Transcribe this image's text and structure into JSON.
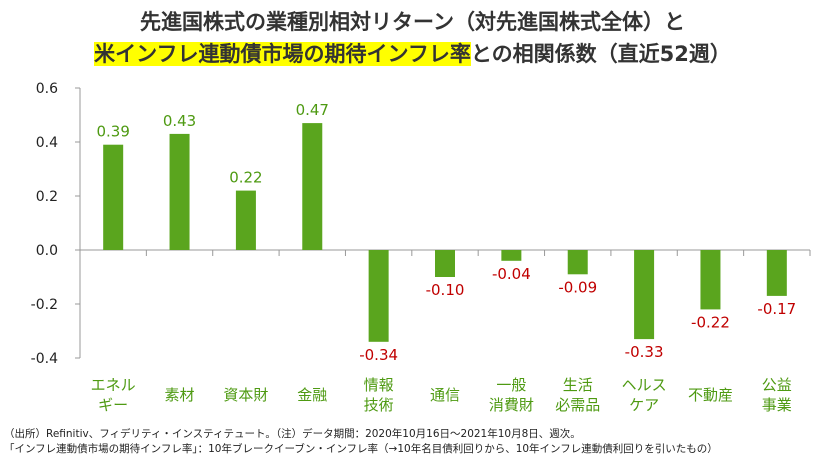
{
  "title_line1": "先進国株式の業種別相対リターン（対先進国株式全体）と",
  "title_line2_highlight": "米インフレ連動債市場の期待インフレ率",
  "title_line2_rest": "との相関係数（直近52週）",
  "notes": [
    "（出所）Refinitiv、フィデリティ・インスティテュート。（注）データ期間：2020年10月16日～2021年10月8日、週次。",
    "「インフレ連動債市場の期待インフレ率」：10年ブレークイーブン・インフレ率（→10年名目債利回りから、10年インフレ連動債利回りを引いたもの）"
  ],
  "colors": {
    "bar": "#5aa51e",
    "positive_label": "#4e9a12",
    "negative_label": "#c00000",
    "highlight": "#ffff00"
  },
  "chart_data": {
    "type": "bar",
    "categories": [
      [
        "エネル",
        "ギー"
      ],
      [
        "素材"
      ],
      [
        "資本財"
      ],
      [
        "金融"
      ],
      [
        "情報",
        "技術"
      ],
      [
        "通信"
      ],
      [
        "一般",
        "消費財"
      ],
      [
        "生活",
        "必需品"
      ],
      [
        "ヘルス",
        "ケア"
      ],
      [
        "不動産"
      ],
      [
        "公益",
        "事業"
      ]
    ],
    "values": [
      0.39,
      0.43,
      0.22,
      0.47,
      -0.34,
      -0.1,
      -0.04,
      -0.09,
      -0.33,
      -0.22,
      -0.17
    ],
    "value_labels": [
      "0.39",
      "0.43",
      "0.22",
      "0.47",
      "-0.34",
      "-0.10",
      "-0.04",
      "-0.09",
      "-0.33",
      "-0.22",
      "-0.17"
    ],
    "ylim": [
      -0.4,
      0.6
    ],
    "yticks": [
      0.6,
      0.4,
      0.2,
      0.0,
      -0.2,
      -0.4
    ],
    "ytick_labels": [
      "0.6",
      "0.4",
      "0.2",
      "0.0",
      "-0.2",
      "-0.4"
    ],
    "grid": false
  }
}
